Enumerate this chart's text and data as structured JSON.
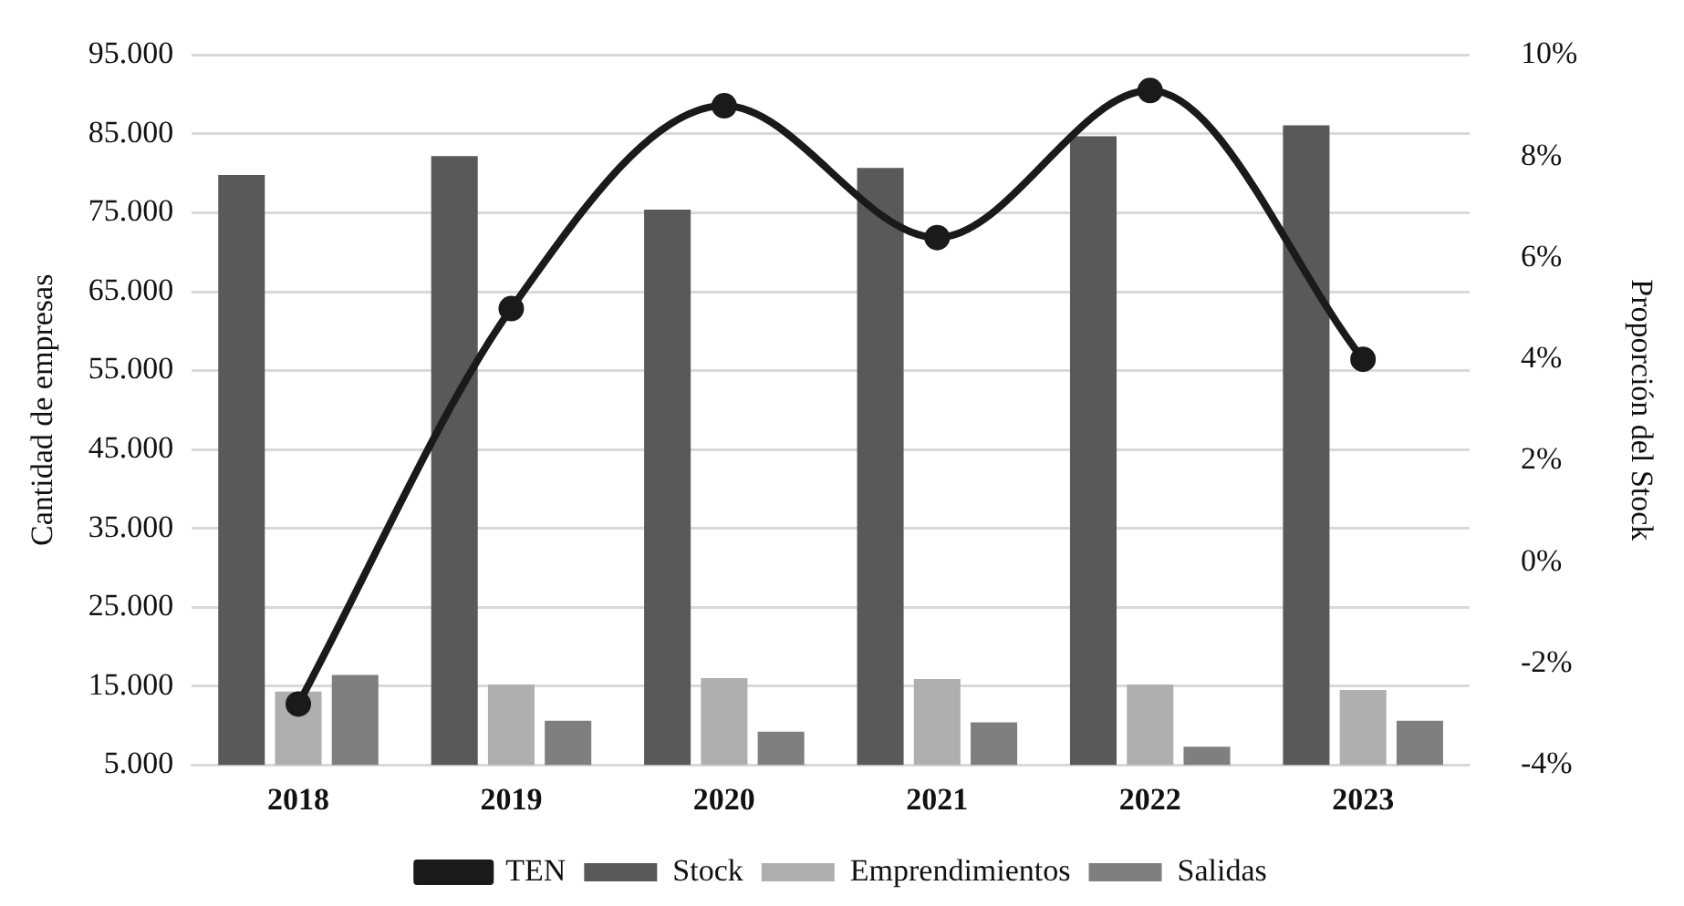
{
  "chart_data": {
    "type": "bar",
    "ylabel": "Cantidad de empresas",
    "y2label": "Proporción del Stock",
    "categories": [
      "2018",
      "2019",
      "2020",
      "2021",
      "2022",
      "2023"
    ],
    "series": [
      {
        "name": "Stock",
        "color": "#595959",
        "values": [
          79800,
          82200,
          75400,
          80700,
          84700,
          86100
        ]
      },
      {
        "name": "Emprendimientos",
        "color": "#afafaf",
        "values": [
          14300,
          15200,
          16000,
          15900,
          15200,
          14500
        ]
      },
      {
        "name": "Salidas",
        "color": "#7f7f7f",
        "values": [
          16400,
          10600,
          9200,
          10400,
          7300,
          10600
        ]
      },
      {
        "name": "TEN",
        "type": "line",
        "axis": "y2",
        "color": "#1a1a1a",
        "marker": "circle",
        "values": [
          -2.8,
          5.0,
          9.0,
          6.4,
          9.3,
          4.0
        ]
      }
    ],
    "ylim": [
      5000,
      95000
    ],
    "yticks": [
      {
        "value": 5000,
        "label": "5.000"
      },
      {
        "value": 15000,
        "label": "15.000"
      },
      {
        "value": 25000,
        "label": "25.000"
      },
      {
        "value": 35000,
        "label": "35.000"
      },
      {
        "value": 45000,
        "label": "45.000"
      },
      {
        "value": 55000,
        "label": "55.000"
      },
      {
        "value": 65000,
        "label": "65.000"
      },
      {
        "value": 75000,
        "label": "75.000"
      },
      {
        "value": 85000,
        "label": "85.000"
      },
      {
        "value": 95000,
        "label": "95.000"
      }
    ],
    "y2lim": [
      -4,
      10
    ],
    "y2ticks": [
      {
        "value": -4,
        "label": "-4%"
      },
      {
        "value": -2,
        "label": "-2%"
      },
      {
        "value": 0,
        "label": "0%"
      },
      {
        "value": 2,
        "label": "2%"
      },
      {
        "value": 4,
        "label": "4%"
      },
      {
        "value": 6,
        "label": "6%"
      },
      {
        "value": 8,
        "label": "8%"
      },
      {
        "value": 10,
        "label": "10%"
      }
    ],
    "grid": "y",
    "legend": "bottom"
  }
}
